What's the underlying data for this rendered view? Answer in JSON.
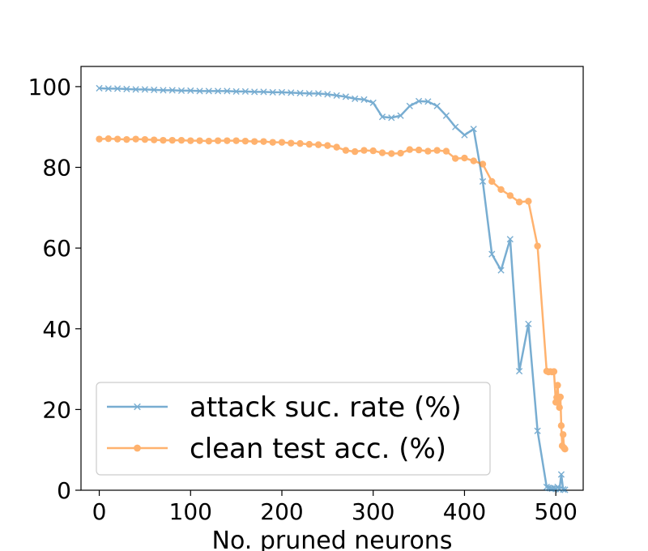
{
  "chart_data": {
    "type": "line",
    "xlabel": "No. pruned neurons",
    "ylabel": "",
    "xlim": [
      -20,
      530
    ],
    "ylim": [
      0,
      105
    ],
    "xticks": [
      0,
      100,
      200,
      300,
      400,
      500
    ],
    "yticks": [
      0,
      20,
      40,
      60,
      80,
      100
    ],
    "grid": false,
    "legend_position": "lower-left",
    "series": [
      {
        "name": "attack suc. rate (%)",
        "color": "#1f77b4",
        "marker": "x",
        "x": [
          0,
          10,
          20,
          30,
          40,
          50,
          60,
          70,
          80,
          90,
          100,
          110,
          120,
          130,
          140,
          150,
          160,
          170,
          180,
          190,
          200,
          210,
          220,
          230,
          240,
          250,
          260,
          270,
          280,
          290,
          300,
          310,
          320,
          330,
          340,
          350,
          360,
          370,
          380,
          390,
          400,
          410,
          420,
          430,
          440,
          450,
          460,
          470,
          480,
          490,
          492,
          494,
          496,
          498,
          500,
          502,
          504,
          506,
          508,
          510
        ],
        "y": [
          99.6,
          99.5,
          99.5,
          99.4,
          99.3,
          99.3,
          99.2,
          99.1,
          99.1,
          99.0,
          99.0,
          98.9,
          98.9,
          98.9,
          98.9,
          98.8,
          98.8,
          98.7,
          98.7,
          98.6,
          98.6,
          98.5,
          98.4,
          98.3,
          98.3,
          98.1,
          97.8,
          97.5,
          97.0,
          96.8,
          96.0,
          92.5,
          92.3,
          92.8,
          95.2,
          96.4,
          96.3,
          95.2,
          92.8,
          90.0,
          88.0,
          89.5,
          76.5,
          58.5,
          54.5,
          62.2,
          29.5,
          41.2,
          14.7,
          0.8,
          0.6,
          0.5,
          0.4,
          0.5,
          0.3,
          0.8,
          0.2,
          3.9,
          0.2,
          0.1
        ]
      },
      {
        "name": "clean test acc. (%)",
        "color": "#ff7f0e",
        "marker": "o",
        "x": [
          0,
          10,
          20,
          30,
          40,
          50,
          60,
          70,
          80,
          90,
          100,
          110,
          120,
          130,
          140,
          150,
          160,
          170,
          180,
          190,
          200,
          210,
          220,
          230,
          240,
          250,
          260,
          270,
          280,
          290,
          300,
          310,
          320,
          330,
          340,
          350,
          360,
          370,
          380,
          390,
          400,
          410,
          420,
          430,
          440,
          450,
          460,
          470,
          480,
          490,
          492,
          494,
          496,
          498,
          500,
          501,
          502,
          503,
          504,
          505,
          506,
          507,
          508,
          509,
          510
        ],
        "y": [
          87.0,
          87.1,
          87.0,
          86.9,
          87.0,
          86.9,
          86.8,
          86.7,
          86.7,
          86.7,
          86.6,
          86.6,
          86.5,
          86.6,
          86.6,
          86.6,
          86.5,
          86.4,
          86.4,
          86.2,
          86.2,
          86.0,
          85.9,
          85.7,
          85.6,
          85.4,
          85.0,
          84.2,
          83.9,
          84.2,
          84.1,
          83.6,
          83.4,
          83.5,
          84.4,
          84.3,
          84.0,
          84.2,
          84.0,
          82.2,
          82.3,
          81.6,
          80.8,
          76.5,
          74.5,
          73.0,
          71.4,
          71.6,
          60.5,
          29.5,
          29.3,
          29.4,
          29.3,
          29.4,
          21.8,
          23.0,
          26.0,
          22.5,
          20.5,
          23.1,
          16.0,
          11.0,
          13.8,
          10.5,
          10.2
        ]
      }
    ]
  }
}
